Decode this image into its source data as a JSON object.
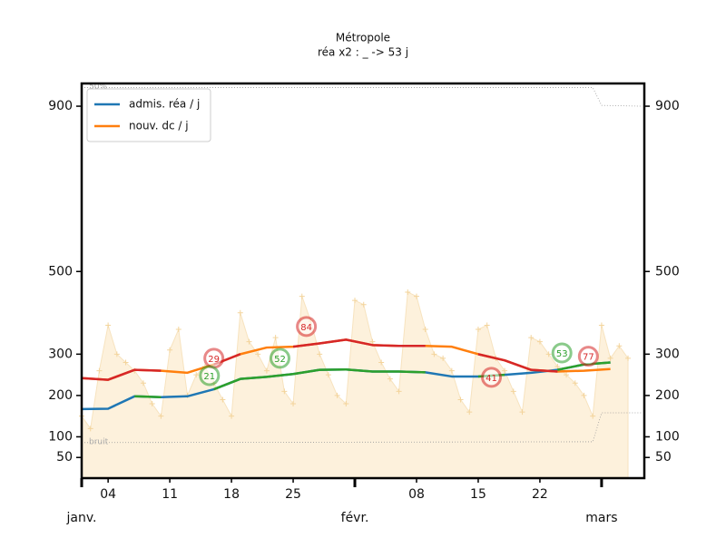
{
  "chart_data": {
    "type": "line",
    "title": "Métropole",
    "subtitle": "réa x2 : _ -> 53 j",
    "x": [
      0,
      3,
      6,
      9,
      12,
      15,
      18,
      21,
      24,
      27,
      30,
      33,
      36,
      39,
      42,
      45,
      48,
      51,
      54,
      57,
      60
    ],
    "series": [
      {
        "name": "admis. réa / j",
        "color": "#1f77b4",
        "values": [
          167,
          168,
          198,
          196,
          198,
          215,
          240,
          245,
          252,
          262,
          263,
          258,
          258,
          256,
          246,
          246,
          250,
          255,
          262,
          275,
          280
        ]
      },
      {
        "name": "nouv. dc / j",
        "color": "#ff7f0e",
        "values": [
          242,
          238,
          262,
          260,
          255,
          275,
          300,
          316,
          318,
          326,
          335,
          322,
          320,
          320,
          318,
          300,
          285,
          262,
          258,
          260,
          264
        ]
      },
      {
        "color": "#2ca02c",
        "values": [
          null,
          null,
          198,
          196,
          null,
          215,
          240,
          245,
          252,
          262,
          263,
          258,
          258,
          256,
          null,
          246,
          250,
          null,
          262,
          275,
          280
        ]
      },
      {
        "color": "#d62728",
        "values": [
          242,
          238,
          262,
          260,
          null,
          275,
          300,
          null,
          318,
          326,
          335,
          322,
          320,
          320,
          null,
          300,
          285,
          262,
          258,
          null,
          264
        ]
      }
    ],
    "noise": {
      "color": "#fdf1dc",
      "marker_color": "#f3d49c",
      "x": [
        0,
        1,
        2,
        3,
        4,
        5,
        6,
        7,
        8,
        9,
        10,
        11,
        12,
        13,
        14,
        15,
        16,
        17,
        18,
        19,
        20,
        21,
        22,
        23,
        24,
        25,
        26,
        27,
        28,
        29,
        30,
        31,
        32,
        33,
        34,
        35,
        36,
        37,
        38,
        39,
        40,
        41,
        42,
        43,
        44,
        45,
        46,
        47,
        48,
        49,
        50,
        51,
        52,
        53,
        54,
        55,
        56,
        57,
        58,
        59,
        60,
        61,
        62
      ],
      "values": [
        150,
        120,
        260,
        370,
        300,
        280,
        260,
        230,
        180,
        150,
        310,
        360,
        200,
        250,
        270,
        230,
        190,
        150,
        400,
        330,
        300,
        260,
        340,
        210,
        180,
        440,
        380,
        300,
        250,
        200,
        180,
        430,
        420,
        330,
        280,
        240,
        210,
        450,
        440,
        360,
        300,
        290,
        260,
        190,
        160,
        360,
        370,
        290,
        260,
        210,
        160,
        340,
        330,
        300,
        270,
        250,
        230,
        200,
        150,
        370,
        290,
        320,
        290
      ]
    },
    "reference_lines": [
      {
        "label": "50%",
        "x": [
          0,
          58,
          59,
          63.5
        ],
        "values": [
          945,
          945,
          902,
          900
        ]
      },
      {
        "label": "bruit",
        "x": [
          0,
          58,
          59,
          63.5
        ],
        "values": [
          86,
          88,
          158,
          158
        ]
      }
    ],
    "annotations": [
      {
        "text": "29",
        "x": 15,
        "y": 290,
        "color": "#d62728"
      },
      {
        "text": "84",
        "x": 25.5,
        "y": 367,
        "color": "#d62728"
      },
      {
        "text": "21",
        "x": 14.5,
        "y": 248,
        "color": "#2ca02c"
      },
      {
        "text": "52",
        "x": 22.5,
        "y": 290,
        "color": "#2ca02c"
      },
      {
        "text": "41",
        "x": 46.5,
        "y": 244,
        "color": "#d62728"
      },
      {
        "text": "53",
        "x": 54.5,
        "y": 303,
        "color": "#2ca02c"
      },
      {
        "text": "77",
        "x": 57.5,
        "y": 295,
        "color": "#d62728"
      }
    ],
    "xlim": [
      0,
      63.85
    ],
    "xticks": [
      {
        "value": 3,
        "label": "04"
      },
      {
        "value": 10,
        "label": "11"
      },
      {
        "value": 17,
        "label": "18"
      },
      {
        "value": 24,
        "label": "25"
      },
      {
        "value": 38,
        "label": "08"
      },
      {
        "value": 45,
        "label": "15"
      },
      {
        "value": 52,
        "label": "22"
      }
    ],
    "months": [
      {
        "value": 0,
        "label": "janv."
      },
      {
        "value": 31,
        "label": "févr."
      },
      {
        "value": 59,
        "label": "mars"
      }
    ],
    "ylim": [
      0,
      955
    ],
    "yticks": [
      50,
      100,
      200,
      300,
      500,
      900
    ],
    "legend": "upper left"
  }
}
